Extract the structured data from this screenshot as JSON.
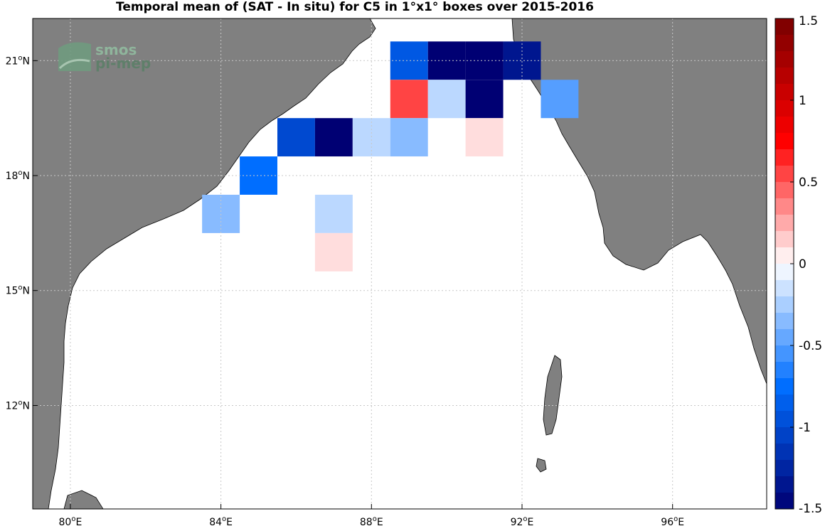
{
  "title": "Temporal mean of (SAT - In situ) for C5 in 1°x1° boxes over 2015-2016",
  "logo": {
    "line1": "smos",
    "line2": "pi-mep"
  },
  "map": {
    "lon_range": [
      79,
      98.5
    ],
    "lat_range": [
      9.3,
      22.1
    ],
    "x_ticks": [
      {
        "value": 80,
        "label": "80",
        "unit": "E"
      },
      {
        "value": 84,
        "label": "84",
        "unit": "E"
      },
      {
        "value": 88,
        "label": "88",
        "unit": "E"
      },
      {
        "value": 92,
        "label": "92",
        "unit": "E"
      },
      {
        "value": 96,
        "label": "96",
        "unit": "E"
      }
    ],
    "y_ticks": [
      {
        "value": 12,
        "label": "12",
        "unit": "N"
      },
      {
        "value": 15,
        "label": "15",
        "unit": "N"
      },
      {
        "value": 18,
        "label": "18",
        "unit": "N"
      },
      {
        "value": 21,
        "label": "21",
        "unit": "N"
      }
    ],
    "land_color": "#808080",
    "ocean_color": "#ffffff"
  },
  "chart_data": {
    "type": "heatmap",
    "title": "Temporal mean of (SAT - In situ) for C5 in 1°x1° boxes over 2015-2016",
    "cell_size_deg": 1,
    "color_range": [
      -1.5,
      1.5
    ],
    "cells": [
      {
        "lon": 89,
        "lat": 21,
        "value": -0.9
      },
      {
        "lon": 90,
        "lat": 21,
        "value": -1.5
      },
      {
        "lon": 91,
        "lat": 21,
        "value": -1.5
      },
      {
        "lon": 92,
        "lat": 21,
        "value": -1.35
      },
      {
        "lon": 89,
        "lat": 20,
        "value": 0.55
      },
      {
        "lon": 90,
        "lat": 20,
        "value": -0.2
      },
      {
        "lon": 91,
        "lat": 20,
        "value": -1.5
      },
      {
        "lon": 93,
        "lat": 20,
        "value": -0.5
      },
      {
        "lon": 86,
        "lat": 19,
        "value": -1.0
      },
      {
        "lon": 87,
        "lat": 19,
        "value": -1.5
      },
      {
        "lon": 88,
        "lat": 19,
        "value": -0.2
      },
      {
        "lon": 89,
        "lat": 19,
        "value": -0.35
      },
      {
        "lon": 91,
        "lat": 19,
        "value": 0.1
      },
      {
        "lon": 85,
        "lat": 18,
        "value": -0.75
      },
      {
        "lon": 84,
        "lat": 17,
        "value": -0.35
      },
      {
        "lon": 87,
        "lat": 17,
        "value": -0.2
      },
      {
        "lon": 87,
        "lat": 16,
        "value": 0.1
      }
    ],
    "colorbar": {
      "ticks": [
        {
          "value": 1.5,
          "label": "1.5"
        },
        {
          "value": 1,
          "label": "1"
        },
        {
          "value": 0.5,
          "label": "0.5"
        },
        {
          "value": 0,
          "label": "0"
        },
        {
          "value": -0.5,
          "label": "-0.5"
        },
        {
          "value": -1,
          "label": "-1"
        },
        {
          "value": -1.5,
          "label": "-1.5"
        }
      ],
      "levels": 30
    }
  }
}
